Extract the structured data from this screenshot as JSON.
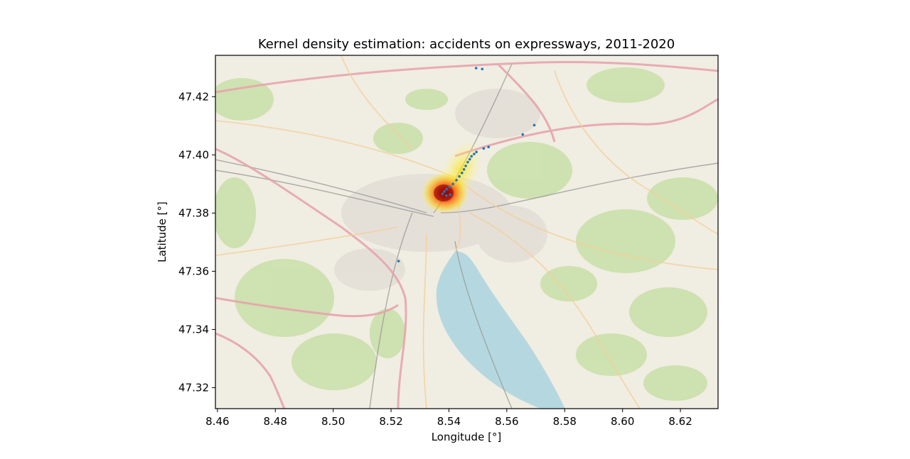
{
  "chart_data": {
    "type": "scatter",
    "title": "Kernel density estimation: accidents on expressways, 2011-2020",
    "xlabel": "Longitude [°]",
    "ylabel": "Latitude [°]",
    "xlim": [
      8.4593,
      8.633
    ],
    "ylim": [
      47.3128,
      47.4342
    ],
    "xticks": [
      8.46,
      8.48,
      8.5,
      8.52,
      8.54,
      8.56,
      8.58,
      8.6,
      8.62
    ],
    "xtick_labels": [
      "8.46",
      "8.48",
      "8.50",
      "8.52",
      "8.54",
      "8.56",
      "8.58",
      "8.60",
      "8.62"
    ],
    "yticks": [
      47.32,
      47.34,
      47.36,
      47.38,
      47.4,
      47.42
    ],
    "ytick_labels": [
      "47.32",
      "47.34",
      "47.36",
      "47.38",
      "47.40",
      "47.42"
    ],
    "basemap": "street map of Zurich with Lake Zurich",
    "density_colormap": [
      "#ffff66",
      "#ffd000",
      "#ff8a00",
      "#ee2200",
      "#a00000"
    ],
    "density_peak": {
      "lon": 8.5385,
      "lat": 47.3875
    },
    "point_color": "#1f77b4",
    "points": [
      {
        "lon": 8.5494,
        "lat": 47.4298
      },
      {
        "lon": 8.5515,
        "lat": 47.4295
      },
      {
        "lon": 8.5695,
        "lat": 47.4102
      },
      {
        "lon": 8.5655,
        "lat": 47.407
      },
      {
        "lon": 8.5537,
        "lat": 47.4027
      },
      {
        "lon": 8.552,
        "lat": 47.4022
      },
      {
        "lon": 8.5495,
        "lat": 47.401
      },
      {
        "lon": 8.5487,
        "lat": 47.4003
      },
      {
        "lon": 8.5478,
        "lat": 47.3995
      },
      {
        "lon": 8.5472,
        "lat": 47.3985
      },
      {
        "lon": 8.5465,
        "lat": 47.3975
      },
      {
        "lon": 8.5458,
        "lat": 47.3962
      },
      {
        "lon": 8.5452,
        "lat": 47.395
      },
      {
        "lon": 8.5445,
        "lat": 47.3938
      },
      {
        "lon": 8.5436,
        "lat": 47.3926
      },
      {
        "lon": 8.5426,
        "lat": 47.3913
      },
      {
        "lon": 8.5414,
        "lat": 47.39
      },
      {
        "lon": 8.5402,
        "lat": 47.389
      },
      {
        "lon": 8.5392,
        "lat": 47.3882
      },
      {
        "lon": 8.5384,
        "lat": 47.3874
      },
      {
        "lon": 8.5378,
        "lat": 47.3866
      },
      {
        "lon": 8.5391,
        "lat": 47.386
      },
      {
        "lon": 8.5404,
        "lat": 47.3863
      },
      {
        "lon": 8.5226,
        "lat": 47.3635
      }
    ]
  }
}
